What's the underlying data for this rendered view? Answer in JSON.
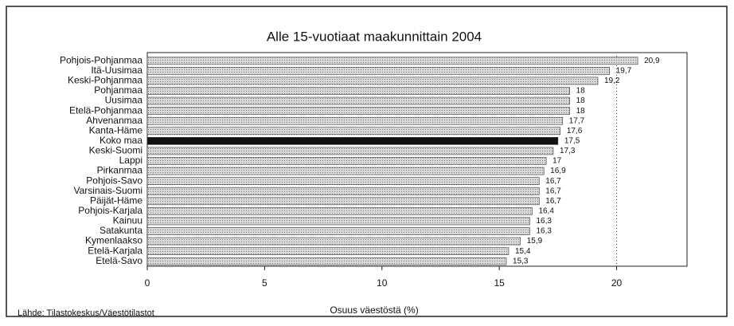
{
  "chart_data": {
    "type": "bar",
    "orientation": "horizontal",
    "title": "Alle 15-vuotiaat maakunnittain 2004",
    "x_label": "Osuus väestöstä (%)",
    "source": "Lähde: Tilastokeskus/Väestötilastot",
    "categories": [
      "Pohjois-Pohjanmaa",
      "Itä-Uusimaa",
      "Keski-Pohjanmaa",
      "Pohjanmaa",
      "Uusimaa",
      "Etelä-Pohjanmaa",
      "Ahvenanmaa",
      "Kanta-Häme",
      "Koko maa",
      "Keski-Suomi",
      "Lappi",
      "Pirkanmaa",
      "Pohjois-Savo",
      "Varsinais-Suomi",
      "Päijät-Häme",
      "Pohjois-Karjala",
      "Kainuu",
      "Satakunta",
      "Kymenlaakso",
      "Etelä-Karjala",
      "Etelä-Savo"
    ],
    "values": [
      20.9,
      19.7,
      19.2,
      18,
      18,
      18,
      17.7,
      17.6,
      17.5,
      17.3,
      17,
      16.9,
      16.7,
      16.7,
      16.7,
      16.4,
      16.3,
      16.3,
      15.9,
      15.4,
      15.3
    ],
    "value_labels": [
      "20,9",
      "19,7",
      "19,2",
      "18",
      "18",
      "18",
      "17,7",
      "17,6",
      "17,5",
      "17,3",
      "17",
      "16,9",
      "16,7",
      "16,7",
      "16,7",
      "16,4",
      "16,3",
      "16,3",
      "15,9",
      "15,4",
      "15,3"
    ],
    "colors": [
      "#b4b4b4",
      "#b4b4b4",
      "#b4b4b4",
      "#b4b4b4",
      "#b4b4b4",
      "#b4b4b4",
      "#b4b4b4",
      "#b4b4b4",
      "#111111",
      "#b4b4b4",
      "#b4b4b4",
      "#b4b4b4",
      "#b4b4b4",
      "#b4b4b4",
      "#b4b4b4",
      "#b4b4b4",
      "#b4b4b4",
      "#b4b4b4",
      "#b4b4b4",
      "#b4b4b4",
      "#b4b4b4"
    ],
    "xlim": [
      0,
      23
    ],
    "xticks": [
      0,
      5,
      10,
      15,
      20
    ],
    "reference_x": 20
  }
}
